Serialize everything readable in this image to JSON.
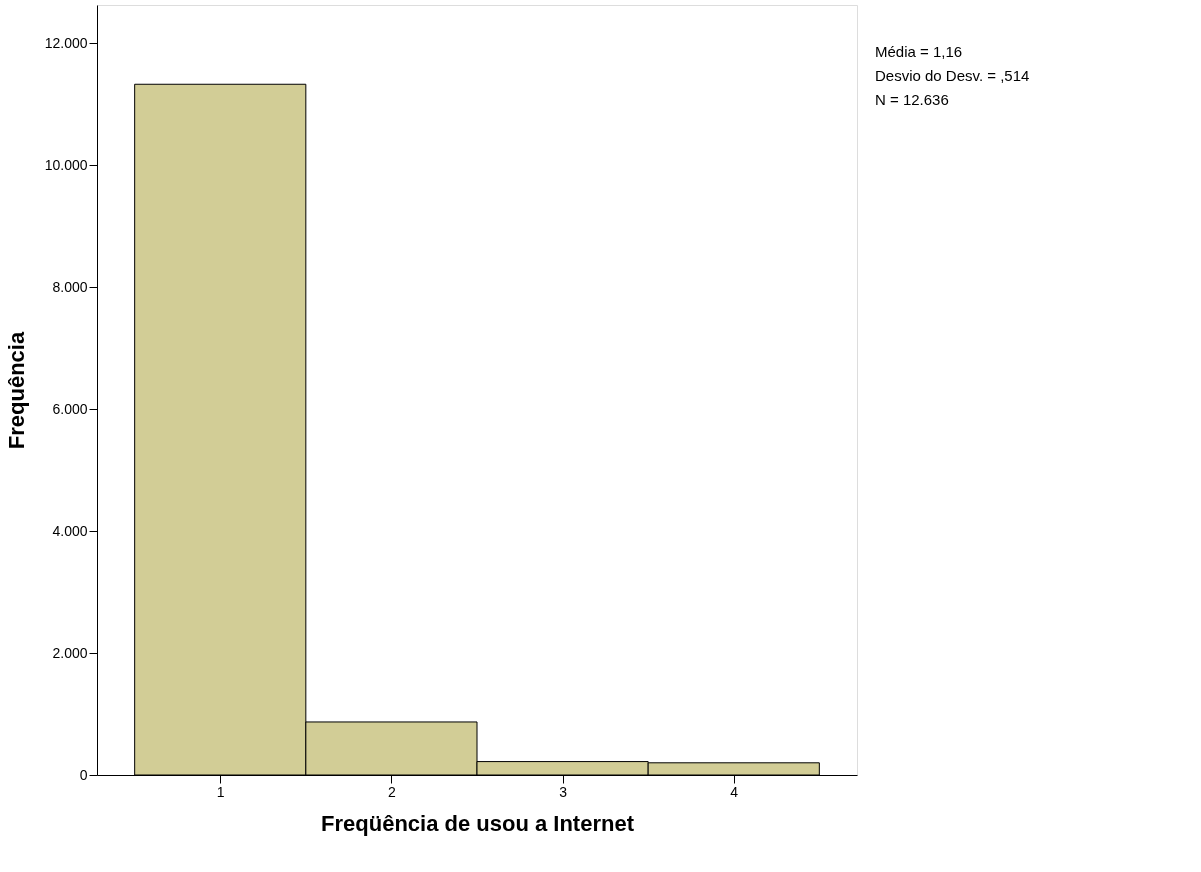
{
  "chart_data": {
    "type": "histogram",
    "xlabel": "Freqüência de usou a Internet",
    "ylabel": "Frequência",
    "bins": [
      0.5,
      1.5,
      2.5,
      3.5,
      4.5
    ],
    "values": [
      11330,
      870,
      220,
      200
    ],
    "color": "#d2cd96",
    "xlim": [
      0.28,
      4.72
    ],
    "xticks": [
      1,
      2,
      3,
      4
    ],
    "ylim": [
      0,
      12630
    ],
    "yticks": [
      {
        "value": 0,
        "label": "0"
      },
      {
        "value": 2000,
        "label": "2.000"
      },
      {
        "value": 4000,
        "label": "4.000"
      },
      {
        "value": 6000,
        "label": "6.000"
      },
      {
        "value": 8000,
        "label": "8.000"
      },
      {
        "value": 10000,
        "label": "10.000"
      },
      {
        "value": 12000,
        "label": "12.000"
      }
    ],
    "grid": false,
    "annotations": [
      "Média = 1,16",
      " Desvio do Desv. = ,514",
      "N = 12.636"
    ]
  }
}
